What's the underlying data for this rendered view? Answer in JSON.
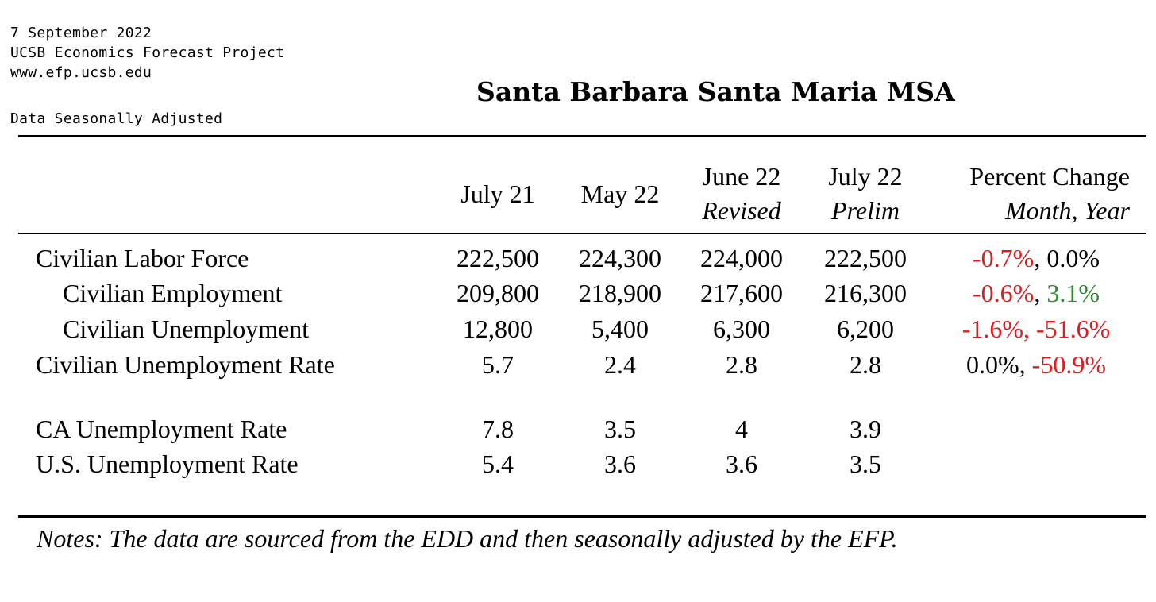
{
  "header": {
    "date": "7 September 2022",
    "organization": "UCSB Economics Forecast Project",
    "website": "www.efp.ucsb.edu",
    "adjustment_note": "Data Seasonally Adjusted",
    "title": "Santa Barbara Santa Maria MSA"
  },
  "table": {
    "columns": [
      {
        "label": "July 21",
        "sublabel": ""
      },
      {
        "label": "May 22",
        "sublabel": ""
      },
      {
        "label": "June 22",
        "sublabel": "Revised"
      },
      {
        "label": "July 22",
        "sublabel": "Prelim"
      }
    ],
    "change_header": {
      "label": "Percent Change",
      "sublabel": "Month, Year"
    },
    "rows": [
      {
        "label": "Civilian Labor Force",
        "values": [
          "222,500",
          "224,300",
          "224,000",
          "222,500"
        ],
        "month_change": "-0.7%",
        "year_change": "0.0%"
      },
      {
        "label": "Civilian Employment",
        "values": [
          "209,800",
          "218,900",
          "217,600",
          "216,300"
        ],
        "month_change": "-0.6%",
        "year_change": "3.1%"
      },
      {
        "label": "Civilian Unemployment",
        "values": [
          "12,800",
          "5,400",
          "6,300",
          "6,200"
        ],
        "month_change": "-1.6%",
        "year_change": "-51.6%"
      },
      {
        "label": "Civilian Unemployment Rate",
        "values": [
          "5.7",
          "2.4",
          "2.8",
          "2.8"
        ],
        "month_change": "0.0%",
        "year_change": "-50.9%"
      },
      {
        "label": "CA Unemployment Rate",
        "values": [
          "7.8",
          "3.5",
          "4",
          "3.9"
        ]
      },
      {
        "label": "U.S. Unemployment Rate",
        "values": [
          "5.4",
          "3.6",
          "3.6",
          "3.5"
        ]
      }
    ],
    "separator": ", "
  },
  "footer": {
    "notes": "Notes: The data are sourced from the EDD and then seasonally adjusted by the EFP."
  },
  "colors": {
    "negative": "#e01b1b",
    "positive": "#2e8b2e",
    "text": "#000000"
  }
}
